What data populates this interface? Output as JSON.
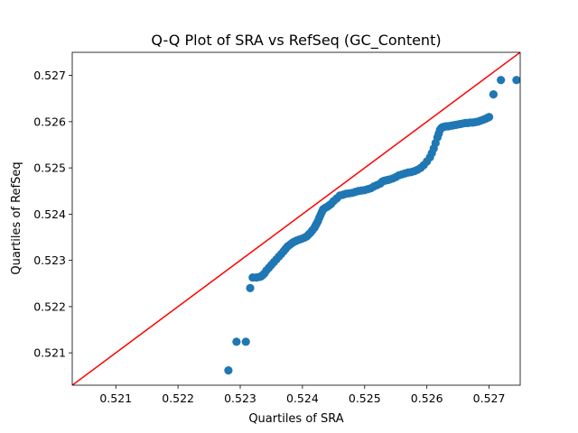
{
  "chart_data": {
    "type": "scatter",
    "title": "Q-Q Plot of SRA vs RefSeq (GC_Content)",
    "xlabel": "Quartiles of SRA",
    "ylabel": "Quartiles of RefSeq",
    "xlim": [
      0.5203,
      0.5275
    ],
    "ylim": [
      0.5203,
      0.5275
    ],
    "xticks": [
      0.521,
      0.522,
      0.523,
      0.524,
      0.525,
      0.526,
      0.527
    ],
    "yticks": [
      0.521,
      0.522,
      0.523,
      0.524,
      0.525,
      0.526,
      0.527
    ],
    "xtick_labels": [
      "0.521",
      "0.522",
      "0.523",
      "0.524",
      "0.525",
      "0.526",
      "0.527"
    ],
    "ytick_labels": [
      "0.521",
      "0.522",
      "0.523",
      "0.524",
      "0.525",
      "0.526",
      "0.527"
    ],
    "grid": false,
    "legend": "none",
    "marker_color": "#1f77b4",
    "reference_line": {
      "color": "#ff0000",
      "x": [
        0.5203,
        0.5275
      ],
      "y": [
        0.5203,
        0.5275
      ]
    },
    "series": [
      {
        "x": [
          0.52281,
          0.52294,
          0.52309,
          0.52316,
          0.5232,
          0.52326,
          0.5233,
          0.52333,
          0.52336,
          0.52339,
          0.52342,
          0.52346,
          0.5235,
          0.52354,
          0.52358,
          0.52362,
          0.52366,
          0.5237,
          0.52373,
          0.52376,
          0.52379,
          0.52382,
          0.52385,
          0.52388,
          0.52391,
          0.52395,
          0.52399,
          0.52403,
          0.52407,
          0.5241,
          0.52413,
          0.52416,
          0.52419,
          0.52421,
          0.52423,
          0.52425,
          0.52427,
          0.52429,
          0.52431,
          0.52433,
          0.52435,
          0.52437,
          0.5244,
          0.52443,
          0.52446,
          0.5245,
          0.52455,
          0.5246,
          0.52465,
          0.5247,
          0.52475,
          0.5248,
          0.52485,
          0.5249,
          0.52495,
          0.525,
          0.52505,
          0.5251,
          0.52515,
          0.5252,
          0.52525,
          0.52528,
          0.52531,
          0.52534,
          0.52537,
          0.5254,
          0.52545,
          0.5255,
          0.52555,
          0.5256,
          0.52565,
          0.5257,
          0.52575,
          0.5258,
          0.52585,
          0.5259,
          0.52595,
          0.526,
          0.52605,
          0.52608,
          0.52611,
          0.52614,
          0.52617,
          0.52619,
          0.52621,
          0.52623,
          0.52625,
          0.52628,
          0.52631,
          0.52634,
          0.52638,
          0.52642,
          0.52646,
          0.5265,
          0.52654,
          0.52658,
          0.52662,
          0.52666,
          0.5267,
          0.52674,
          0.52678,
          0.52682,
          0.52686,
          0.5269,
          0.52694,
          0.52697,
          0.527,
          0.52707,
          0.52719,
          0.52744
        ],
        "y": [
          0.52062,
          0.52124,
          0.52124,
          0.5224,
          0.52263,
          0.52263,
          0.52264,
          0.52265,
          0.52268,
          0.52272,
          0.52278,
          0.52284,
          0.5229,
          0.52296,
          0.52302,
          0.52308,
          0.52314,
          0.5232,
          0.52325,
          0.5233,
          0.52333,
          0.52336,
          0.52339,
          0.52341,
          0.52343,
          0.52345,
          0.52347,
          0.52349,
          0.52352,
          0.52356,
          0.5236,
          0.52365,
          0.5237,
          0.52375,
          0.5238,
          0.52385,
          0.52392,
          0.52398,
          0.52404,
          0.5241,
          0.52412,
          0.52414,
          0.52416,
          0.52419,
          0.52422,
          0.52428,
          0.52434,
          0.5244,
          0.52442,
          0.52444,
          0.52445,
          0.52446,
          0.52448,
          0.5245,
          0.52451,
          0.52452,
          0.52454,
          0.52456,
          0.5246,
          0.52463,
          0.52466,
          0.5247,
          0.52472,
          0.52473,
          0.52474,
          0.52475,
          0.52477,
          0.5248,
          0.52484,
          0.52486,
          0.52488,
          0.5249,
          0.52491,
          0.52493,
          0.52496,
          0.525,
          0.52506,
          0.52514,
          0.52523,
          0.52532,
          0.52542,
          0.52554,
          0.52566,
          0.52574,
          0.52582,
          0.52586,
          0.52588,
          0.52589,
          0.5259,
          0.5259,
          0.52591,
          0.52592,
          0.52593,
          0.52594,
          0.52595,
          0.52596,
          0.52597,
          0.52597,
          0.52598,
          0.52598,
          0.52599,
          0.526,
          0.52602,
          0.52604,
          0.52606,
          0.52608,
          0.5261,
          0.52659,
          0.5269,
          0.5269
        ]
      }
    ]
  }
}
